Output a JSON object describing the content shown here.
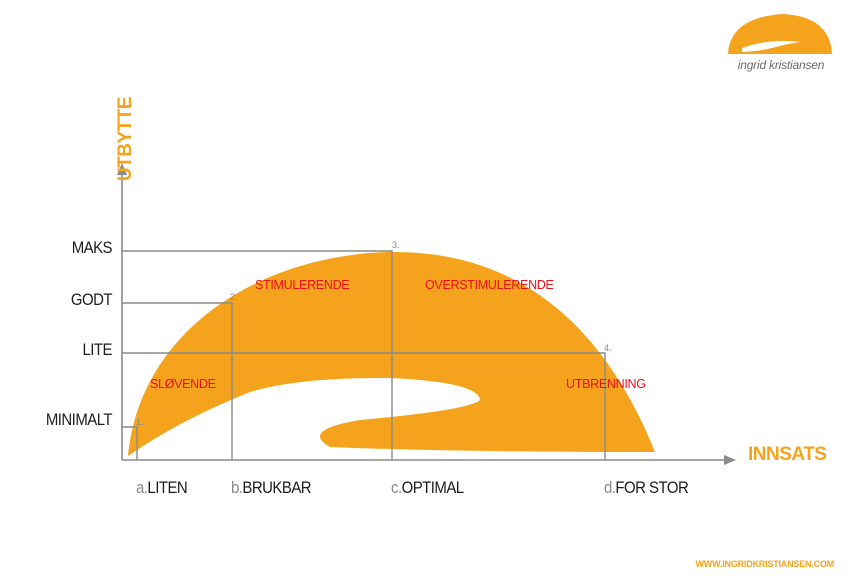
{
  "logo": {
    "text": "ingrid kristiansen"
  },
  "y_axis": {
    "title": "UTBYTTE",
    "levels": [
      "MAKS",
      "GODT",
      "LITE",
      "MINIMALT"
    ]
  },
  "x_axis": {
    "title": "INNSATS",
    "categories": [
      {
        "prefix": "a.",
        "label": "LITEN"
      },
      {
        "prefix": "b.",
        "label": "BRUKBAR"
      },
      {
        "prefix": "c.",
        "label": "OPTIMAL"
      },
      {
        "prefix": "d.",
        "label": "FOR STOR"
      }
    ]
  },
  "zones": [
    "SLØVENDE",
    "STIMULERENDE",
    "OVERSTIMULERENDE",
    "UTBRENNING"
  ],
  "points": [
    "1.",
    "2.",
    "3.",
    "4."
  ],
  "footer": {
    "url": "WWW.INGRIDKRISTIANSEN.COM"
  },
  "colors": {
    "accent": "#f5a31c",
    "zone_text": "#e8121b",
    "guide": "#8a8a8a"
  }
}
